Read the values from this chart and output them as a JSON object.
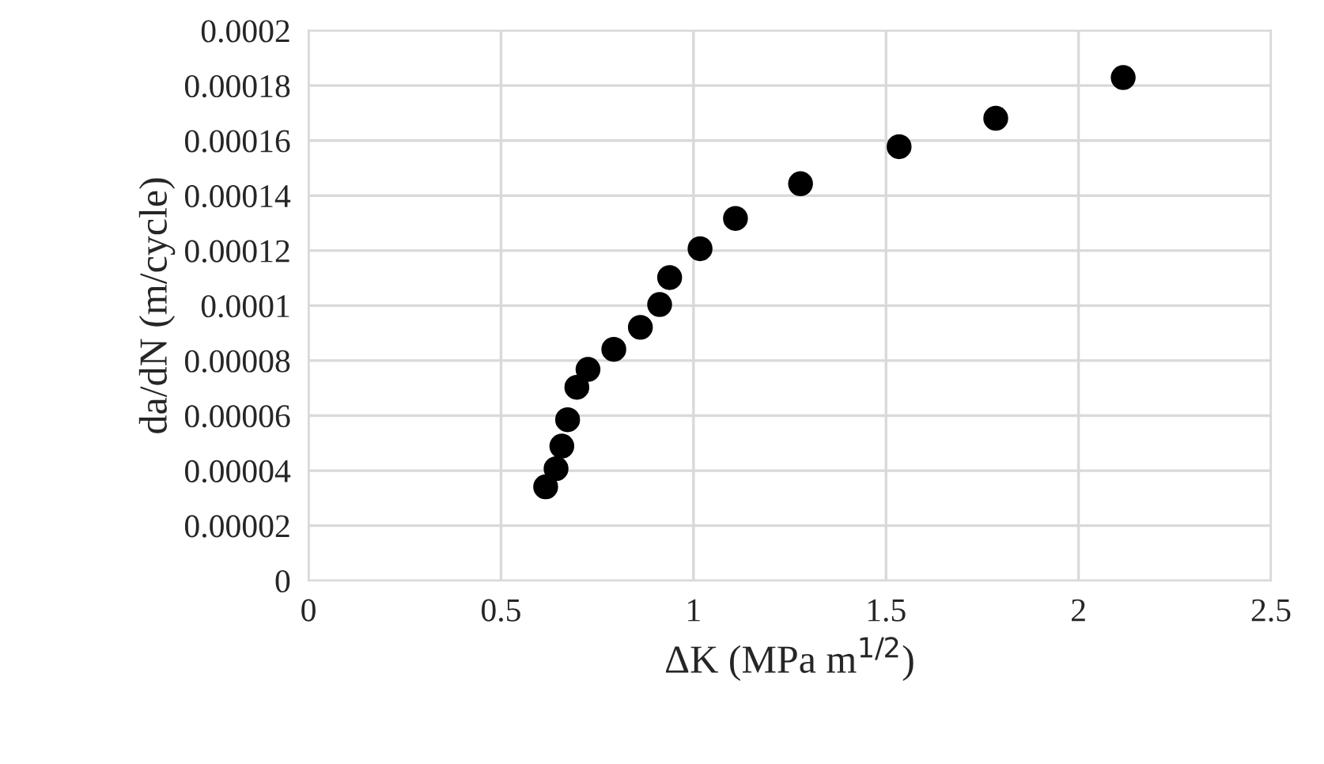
{
  "chart_data": {
    "type": "scatter",
    "xlabel": "ΔK (MPa m$^{1/2}$)",
    "ylabel": "da/dN (m/cycle)",
    "x": [
      0.616,
      0.643,
      0.658,
      0.673,
      0.697,
      0.726,
      0.793,
      0.862,
      0.912,
      0.938,
      1.017,
      1.109,
      1.278,
      1.534,
      1.785,
      2.116
    ],
    "series": [
      {
        "color": "#000000",
        "values": [
          3.41e-05,
          4.07e-05,
          4.89e-05,
          5.85e-05,
          7.03e-05,
          7.68e-05,
          8.41e-05,
          9.21e-05,
          0.0001004,
          0.0001102,
          0.0001207,
          0.0001317,
          0.0001443,
          0.0001578,
          0.0001681,
          0.0001829
        ]
      }
    ],
    "xlim": [
      0,
      2.5
    ],
    "xticks": [
      0,
      0.5,
      1,
      1.5,
      2,
      2.5
    ],
    "ylim": [
      0,
      0.0002
    ],
    "yticks": [
      0,
      {
        "value": 2e-05,
        "label": "0.00002"
      },
      {
        "value": 4e-05,
        "label": "0.00004"
      },
      {
        "value": 6e-05,
        "label": "0.00006"
      },
      {
        "value": 8e-05,
        "label": "0.00008"
      },
      0.0001,
      0.00012,
      0.00014,
      0.00016,
      0.00018,
      0.0002
    ],
    "grid": true,
    "marker": "circle"
  }
}
